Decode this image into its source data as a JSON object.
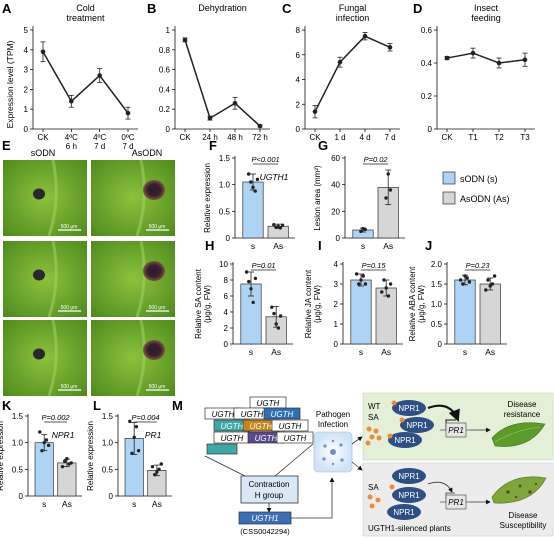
{
  "panel_letters": {
    "A": "A",
    "B": "B",
    "C": "C",
    "D": "D",
    "E": "E",
    "F": "F",
    "G": "G",
    "H": "H",
    "I": "I",
    "J": "J",
    "K": "K",
    "L": "L",
    "M": "M"
  },
  "line_panels": [
    {
      "id": "A",
      "title": [
        "Cold",
        "treatment"
      ],
      "ylabel": "Expression level (TPM)",
      "yticks": [
        "0",
        "1",
        "2",
        "3",
        "4",
        "5"
      ],
      "xticks": [
        [
          "CK"
        ],
        [
          "4ºC",
          "6 h"
        ],
        [
          "4ºC",
          "7 d"
        ],
        [
          "0ºC",
          "7 d"
        ]
      ]
    },
    {
      "id": "B",
      "title": [
        "Dehydration"
      ],
      "yticks": [
        "0",
        "0.2",
        "0.4",
        "0.6",
        "0.8",
        "1"
      ],
      "xticks": [
        [
          "CK"
        ],
        [
          "24 h"
        ],
        [
          "48 h"
        ],
        [
          "72 h"
        ]
      ]
    },
    {
      "id": "C",
      "title": [
        "Fungal",
        "infection"
      ],
      "yticks": [
        "0",
        "2",
        "4",
        "6",
        "8"
      ],
      "xticks": [
        [
          "CK"
        ],
        [
          "1 d"
        ],
        [
          "4 d"
        ],
        [
          "7 d"
        ]
      ]
    },
    {
      "id": "D",
      "title": [
        "Insect",
        "feeding"
      ],
      "yticks": [
        "0",
        "0.2",
        "0.4",
        "0.6"
      ],
      "xticks": [
        [
          "CK"
        ],
        [
          "T1"
        ],
        [
          "T2"
        ],
        [
          "T3"
        ]
      ]
    }
  ],
  "micrograph": {
    "col_labels": [
      "sODN",
      "AsODN"
    ],
    "scale_bar": "500 μm"
  },
  "bar_panels": [
    {
      "id": "F",
      "ylabel": [
        "Relative expression"
      ],
      "pval": "P<0.001",
      "gene": "UGTH1",
      "yticks": [
        "0",
        "0.5",
        "1.0",
        "1.5"
      ]
    },
    {
      "id": "G",
      "ylabel": [
        "Lesion area (mm²)"
      ],
      "pval": "P=0.02",
      "yticks": [
        "0",
        "20",
        "40",
        "60"
      ]
    },
    {
      "id": "H",
      "ylabel": [
        "Relative SA content",
        "(μg/g, FW)"
      ],
      "pval": "P=0.01",
      "yticks": [
        "0",
        "2",
        "4",
        "6",
        "8",
        "10"
      ]
    },
    {
      "id": "I",
      "ylabel": [
        "Relative JA content",
        "(μg/g, FW)"
      ],
      "pval": "P=0.15",
      "yticks": [
        "0",
        "1",
        "2",
        "3",
        "4"
      ]
    },
    {
      "id": "J",
      "ylabel": [
        "Relative ABA content",
        "(μg/g, FW)"
      ],
      "pval": "P=0.23",
      "yticks": [
        "0",
        "0.5",
        "1.0",
        "1.5",
        "2.0"
      ]
    },
    {
      "id": "K",
      "ylabel": [
        "Relative expression"
      ],
      "pval": "P=0.002",
      "gene": "NPR1",
      "yticks": [
        "0",
        "0.5",
        "1.0",
        "1.5"
      ]
    },
    {
      "id": "L",
      "ylabel": [
        "Relative expression"
      ],
      "pval": "P=0.004",
      "gene": "PR1",
      "yticks": [
        "0",
        "0.5",
        "1.0",
        "1.5"
      ]
    }
  ],
  "bar_categories": [
    "s",
    "As"
  ],
  "legend": [
    "sODN (s)",
    "AsODN (As)"
  ],
  "colors": {
    "s": "#aed3f3",
    "as": "#d6d6d6",
    "wt_bg": "#e3efd6",
    "si_bg": "#ececec",
    "npr1": "#2e4f83",
    "ugth": "#c6851f",
    "teal": "#3fa7a7"
  },
  "chart_data": [
    {
      "type": "line",
      "panel": "A",
      "title": "Cold treatment",
      "ylabel": "Expression level (TPM)",
      "ylim": [
        0,
        5
      ],
      "categories": [
        "CK",
        "4ºC 6 h",
        "4ºC 7 d",
        "0ºC 7 d"
      ],
      "values": [
        3.9,
        1.4,
        2.7,
        0.8
      ],
      "errors": [
        0.5,
        0.3,
        0.35,
        0.3
      ]
    },
    {
      "type": "line",
      "panel": "B",
      "title": "Dehydration",
      "ylim": [
        0,
        1
      ],
      "categories": [
        "CK",
        "24 h",
        "48 h",
        "72 h"
      ],
      "values": [
        0.9,
        0.11,
        0.26,
        0.03
      ],
      "errors": [
        0.02,
        0.02,
        0.06,
        0.01
      ]
    },
    {
      "type": "line",
      "panel": "C",
      "title": "Fungal infection",
      "ylim": [
        0,
        8
      ],
      "categories": [
        "CK",
        "1 d",
        "4 d",
        "7 d"
      ],
      "values": [
        1.4,
        5.4,
        7.5,
        6.6
      ],
      "errors": [
        0.5,
        0.4,
        0.3,
        0.3
      ]
    },
    {
      "type": "line",
      "panel": "D",
      "title": "Insect feeding",
      "ylim": [
        0,
        0.6
      ],
      "categories": [
        "CK",
        "T1",
        "T2",
        "T3"
      ],
      "values": [
        0.43,
        0.46,
        0.4,
        0.42
      ],
      "errors": [
        0.01,
        0.03,
        0.03,
        0.04
      ]
    },
    {
      "type": "bar",
      "panel": "F",
      "categories": [
        "s",
        "As"
      ],
      "values": [
        1.05,
        0.22
      ],
      "errors": [
        0.15,
        0.04
      ],
      "ylim": [
        0,
        1.5
      ],
      "points": [
        [
          1.2,
          1.05,
          0.95,
          0.88,
          1.1
        ],
        [
          0.25,
          0.2,
          0.22,
          0.19,
          0.24
        ]
      ]
    },
    {
      "type": "bar",
      "panel": "G",
      "categories": [
        "s",
        "As"
      ],
      "values": [
        6,
        38
      ],
      "errors": [
        1.5,
        13
      ],
      "ylim": [
        0,
        60
      ],
      "points": [
        [
          5,
          7,
          6.5
        ],
        [
          30,
          48,
          36
        ]
      ]
    },
    {
      "type": "bar",
      "panel": "H",
      "categories": [
        "s",
        "As"
      ],
      "values": [
        7.5,
        3.4
      ],
      "errors": [
        1.5,
        1.3
      ],
      "ylim": [
        0,
        10
      ],
      "points": [
        [
          9,
          7.8,
          6.9,
          5.2,
          8.2
        ],
        [
          4.6,
          3.8,
          2.5,
          2.0,
          3.5
        ]
      ]
    },
    {
      "type": "bar",
      "panel": "I",
      "categories": [
        "s",
        "As"
      ],
      "values": [
        3.2,
        2.8
      ],
      "errors": [
        0.3,
        0.4
      ],
      "ylim": [
        0,
        4
      ],
      "points": [
        [
          3.5,
          3.0,
          3.2,
          3.4,
          3.0
        ],
        [
          2.6,
          3.2,
          2.8,
          2.4,
          3.0
        ]
      ]
    },
    {
      "type": "bar",
      "panel": "J",
      "categories": [
        "s",
        "As"
      ],
      "values": [
        1.6,
        1.5
      ],
      "errors": [
        0.12,
        0.15
      ],
      "ylim": [
        0,
        2
      ],
      "points": [
        [
          1.6,
          1.5,
          1.7,
          1.65,
          1.55
        ],
        [
          1.35,
          1.6,
          1.45,
          1.5,
          1.7
        ]
      ]
    },
    {
      "type": "bar",
      "panel": "K",
      "categories": [
        "s",
        "As"
      ],
      "values": [
        1.0,
        0.62
      ],
      "errors": [
        0.15,
        0.07
      ],
      "ylim": [
        0,
        1.5
      ],
      "points": [
        [
          1.2,
          0.85,
          1.0,
          1.05,
          0.95
        ],
        [
          0.55,
          0.65,
          0.7,
          0.6,
          0.62
        ]
      ]
    },
    {
      "type": "bar",
      "panel": "L",
      "categories": [
        "s",
        "As"
      ],
      "values": [
        1.08,
        0.48
      ],
      "errors": [
        0.3,
        0.1
      ],
      "ylim": [
        0,
        1.5
      ],
      "points": [
        [
          1.4,
          0.8,
          1.1,
          1.3,
          0.85
        ],
        [
          0.55,
          0.4,
          0.45,
          0.5,
          0.6
        ]
      ]
    }
  ],
  "diagram": {
    "gene_boxes": [
      "UGTH",
      "UGTH",
      "UGTH",
      "UGTH",
      "UGTH",
      "UGTH",
      "UGTH",
      "UGTH",
      "UGTH",
      "UGTH"
    ],
    "contraction": [
      "Contraction",
      "H group"
    ],
    "ugth1_box": "UGTH1",
    "css_id": "(CSS0042294)",
    "pathogen": [
      "Pathogen",
      "Infection"
    ],
    "wt": "WT",
    "sa1": "SA",
    "sa2": "SA",
    "npr1": "NPR1",
    "pr1": "PR1",
    "disease_resistance": [
      "Disease",
      "resistance"
    ],
    "disease_susceptibility": [
      "Disease",
      "Susceptibility"
    ],
    "silenced": "UGTH1-silenced plants"
  }
}
